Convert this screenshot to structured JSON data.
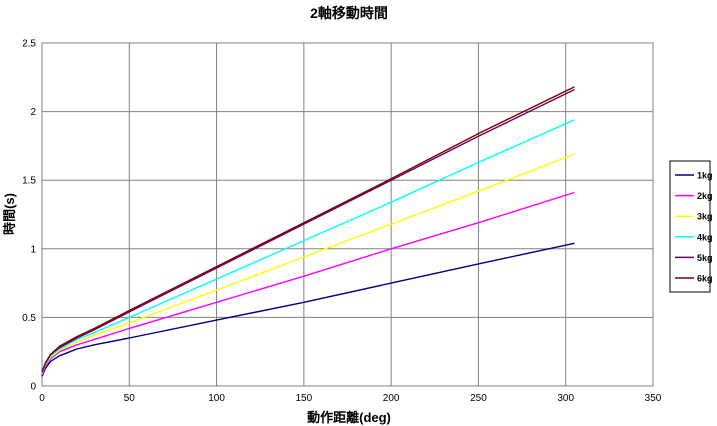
{
  "chart_data": {
    "type": "line",
    "title": "2軸移動時間",
    "xlabel": "動作距離(deg)",
    "ylabel": "時間(s)",
    "xlim": [
      0,
      350
    ],
    "ylim": [
      0,
      2.5
    ],
    "xticks": [
      0,
      50,
      100,
      150,
      200,
      250,
      300,
      350
    ],
    "yticks": [
      0,
      0.5,
      1,
      1.5,
      2,
      2.5
    ],
    "ytick_labels": [
      "0",
      "0.5",
      "1",
      "1.5",
      "2",
      "2.5"
    ],
    "grid": true,
    "legend_position": "right",
    "series": [
      {
        "name": "1kg",
        "color": "#000080",
        "x": [
          0,
          2,
          5,
          10,
          20,
          30,
          50,
          100,
          150,
          200,
          250,
          305
        ],
        "y": [
          0.07,
          0.13,
          0.18,
          0.22,
          0.27,
          0.3,
          0.35,
          0.48,
          0.61,
          0.75,
          0.89,
          1.04
        ]
      },
      {
        "name": "2kg",
        "color": "#FF00FF",
        "x": [
          0,
          2,
          5,
          10,
          20,
          30,
          50,
          100,
          150,
          200,
          250,
          305
        ],
        "y": [
          0.08,
          0.15,
          0.2,
          0.25,
          0.3,
          0.34,
          0.42,
          0.61,
          0.8,
          1.0,
          1.19,
          1.41
        ]
      },
      {
        "name": "3kg",
        "color": "#FFFF00",
        "x": [
          0,
          2,
          5,
          10,
          20,
          30,
          50,
          100,
          150,
          200,
          250,
          305
        ],
        "y": [
          0.09,
          0.16,
          0.21,
          0.26,
          0.32,
          0.37,
          0.46,
          0.7,
          0.94,
          1.18,
          1.42,
          1.69
        ]
      },
      {
        "name": "4kg",
        "color": "#00FFFF",
        "x": [
          0,
          2,
          5,
          10,
          20,
          30,
          50,
          100,
          150,
          200,
          250,
          305
        ],
        "y": [
          0.09,
          0.16,
          0.22,
          0.27,
          0.34,
          0.39,
          0.5,
          0.78,
          1.06,
          1.34,
          1.63,
          1.94
        ]
      },
      {
        "name": "5kg",
        "color": "#660066",
        "x": [
          0,
          2,
          5,
          10,
          20,
          30,
          50,
          100,
          150,
          200,
          250,
          305
        ],
        "y": [
          0.1,
          0.17,
          0.23,
          0.28,
          0.35,
          0.41,
          0.54,
          0.86,
          1.18,
          1.5,
          1.82,
          2.16
        ]
      },
      {
        "name": "6kg",
        "color": "#800000",
        "x": [
          0,
          2,
          5,
          10,
          20,
          30,
          50,
          100,
          150,
          200,
          250,
          305
        ],
        "y": [
          0.1,
          0.17,
          0.23,
          0.29,
          0.36,
          0.42,
          0.55,
          0.87,
          1.19,
          1.51,
          1.84,
          2.18
        ]
      }
    ]
  }
}
